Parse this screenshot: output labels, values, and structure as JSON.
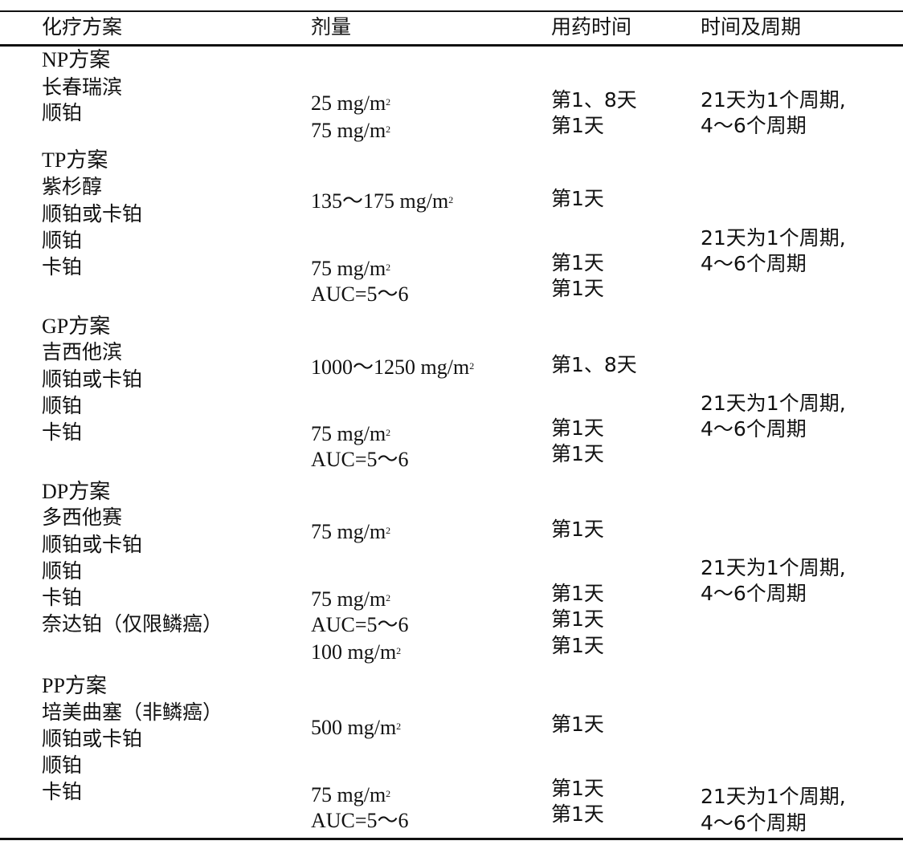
{
  "header": {
    "scheme": "化疗方案",
    "dose": "剂量",
    "timing": "用药时间",
    "cycle": "时间及周期"
  },
  "unit": "mg/m",
  "sup": "2",
  "np": {
    "name": "NP方案",
    "drugs": [
      "长春瑞滨",
      "顺铂"
    ],
    "doses": [
      "25 ",
      "75 "
    ],
    "times": [
      "第1、8天",
      "第1天"
    ],
    "cycle": [
      "21天为1个周期,",
      "4～6个周期"
    ]
  },
  "tp": {
    "name": "TP方案",
    "drugs": [
      "紫杉醇",
      "顺铂或卡铂",
      "顺铂",
      "卡铂"
    ],
    "doses": [
      "135～175 ",
      "75 ",
      "AUC=5～6"
    ],
    "times": [
      "第1天",
      "第1天",
      "第1天"
    ],
    "cycle": [
      "21天为1个周期,",
      "4～6个周期"
    ]
  },
  "gp": {
    "name": "GP方案",
    "drugs": [
      "吉西他滨",
      "顺铂或卡铂",
      "顺铂",
      "卡铂"
    ],
    "doses": [
      "1000～1250 ",
      "75 ",
      "AUC=5～6"
    ],
    "times": [
      "第1、8天",
      "第1天",
      "第1天"
    ],
    "cycle": [
      "21天为1个周期,",
      "4～6个周期"
    ]
  },
  "dp": {
    "name": "DP方案",
    "drugs": [
      "多西他赛",
      "顺铂或卡铂",
      "顺铂",
      "卡铂",
      "奈达铂（仅限鳞癌）"
    ],
    "doses": [
      "75 ",
      "75 ",
      "AUC=5～6",
      "100 "
    ],
    "times": [
      "第1天",
      "第1天",
      "第1天",
      "第1天"
    ],
    "cycle": [
      "21天为1个周期,",
      "4～6个周期"
    ]
  },
  "pp": {
    "name": "PP方案",
    "drugs": [
      "培美曲塞（非鳞癌）",
      "顺铂或卡铂",
      "顺铂",
      "卡铂"
    ],
    "doses": [
      "500 ",
      "75 ",
      "AUC=5～6"
    ],
    "times": [
      "第1天",
      "第1天",
      "第1天"
    ],
    "cycle": [
      "21天为1个周期,",
      "4～6个周期"
    ]
  }
}
